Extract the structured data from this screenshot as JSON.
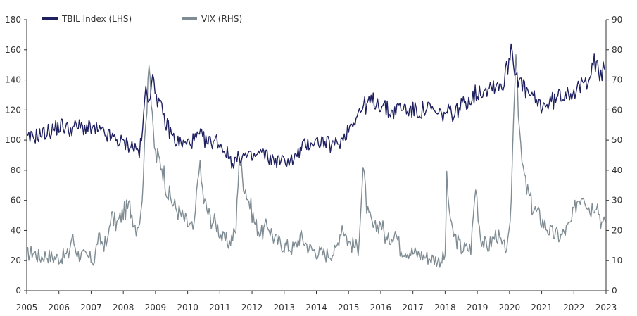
{
  "chart_data": {
    "type": "line",
    "title": "",
    "x_range": [
      2005,
      2023
    ],
    "x_ticks": [
      "2005",
      "2006",
      "2007",
      "2008",
      "2009",
      "2010",
      "2011",
      "2012",
      "2013",
      "2014",
      "2015",
      "2016",
      "2017",
      "2018",
      "2019",
      "2020",
      "2021",
      "2022",
      "2023"
    ],
    "y_left": {
      "range": [
        0,
        180
      ],
      "ticks": [
        "0",
        "20",
        "40",
        "60",
        "80",
        "100",
        "120",
        "140",
        "160",
        "180"
      ]
    },
    "y_right": {
      "range": [
        0,
        90
      ],
      "ticks": [
        "0",
        "10",
        "20",
        "30",
        "40",
        "50",
        "60",
        "70",
        "80",
        "90"
      ]
    },
    "legend_position": "top-left",
    "grid": false,
    "colors": {
      "tbil": "#1f2060",
      "vix": "#7f8c93",
      "axis": "#333333"
    },
    "series": [
      {
        "name": "TBIL Index (LHS)",
        "axis": "left",
        "points": [
          [
            2005.0,
            100
          ],
          [
            2005.3,
            103
          ],
          [
            2005.6,
            105
          ],
          [
            2005.9,
            108
          ],
          [
            2006.1,
            110
          ],
          [
            2006.3,
            107
          ],
          [
            2006.6,
            109
          ],
          [
            2006.9,
            108
          ],
          [
            2007.2,
            106
          ],
          [
            2007.5,
            103
          ],
          [
            2007.8,
            100
          ],
          [
            2008.0,
            98
          ],
          [
            2008.3,
            96
          ],
          [
            2008.5,
            92
          ],
          [
            2008.6,
            105
          ],
          [
            2008.7,
            135
          ],
          [
            2008.8,
            130
          ],
          [
            2008.95,
            140
          ],
          [
            2009.1,
            125
          ],
          [
            2009.3,
            112
          ],
          [
            2009.6,
            100
          ],
          [
            2009.9,
            97
          ],
          [
            2010.2,
            100
          ],
          [
            2010.4,
            103
          ],
          [
            2010.6,
            98
          ],
          [
            2010.9,
            100
          ],
          [
            2011.2,
            92
          ],
          [
            2011.4,
            85
          ],
          [
            2011.7,
            90
          ],
          [
            2012.0,
            88
          ],
          [
            2012.3,
            92
          ],
          [
            2012.6,
            87
          ],
          [
            2012.9,
            86
          ],
          [
            2013.3,
            87
          ],
          [
            2013.6,
            96
          ],
          [
            2013.9,
            99
          ],
          [
            2014.2,
            99
          ],
          [
            2014.5,
            96
          ],
          [
            2014.8,
            100
          ],
          [
            2015.0,
            108
          ],
          [
            2015.2,
            115
          ],
          [
            2015.5,
            123
          ],
          [
            2015.8,
            126
          ],
          [
            2016.0,
            124
          ],
          [
            2016.3,
            118
          ],
          [
            2016.6,
            122
          ],
          [
            2016.9,
            120
          ],
          [
            2017.2,
            119
          ],
          [
            2017.5,
            121
          ],
          [
            2017.8,
            116
          ],
          [
            2018.0,
            118
          ],
          [
            2018.3,
            118
          ],
          [
            2018.6,
            125
          ],
          [
            2018.9,
            130
          ],
          [
            2019.2,
            134
          ],
          [
            2019.5,
            137
          ],
          [
            2019.8,
            137
          ],
          [
            2019.95,
            150
          ],
          [
            2020.05,
            163
          ],
          [
            2020.2,
            145
          ],
          [
            2020.4,
            135
          ],
          [
            2020.7,
            128
          ],
          [
            2020.95,
            123
          ],
          [
            2021.2,
            124
          ],
          [
            2021.5,
            128
          ],
          [
            2021.8,
            133
          ],
          [
            2022.1,
            132
          ],
          [
            2022.4,
            140
          ],
          [
            2022.6,
            153
          ],
          [
            2022.8,
            143
          ],
          [
            2022.95,
            147
          ]
        ]
      },
      {
        "name": "VIX (RHS)",
        "axis": "right",
        "points": [
          [
            2005.0,
            12
          ],
          [
            2005.2,
            13
          ],
          [
            2005.4,
            11
          ],
          [
            2005.6,
            12
          ],
          [
            2005.8,
            11
          ],
          [
            2006.0,
            11
          ],
          [
            2006.3,
            12
          ],
          [
            2006.4,
            18
          ],
          [
            2006.6,
            12
          ],
          [
            2006.9,
            11
          ],
          [
            2007.1,
            10
          ],
          [
            2007.2,
            17
          ],
          [
            2007.5,
            15
          ],
          [
            2007.6,
            25
          ],
          [
            2007.8,
            22
          ],
          [
            2008.0,
            26
          ],
          [
            2008.2,
            28
          ],
          [
            2008.4,
            21
          ],
          [
            2008.55,
            25
          ],
          [
            2008.7,
            55
          ],
          [
            2008.8,
            80
          ],
          [
            2008.9,
            55
          ],
          [
            2009.0,
            45
          ],
          [
            2009.2,
            42
          ],
          [
            2009.4,
            32
          ],
          [
            2009.6,
            28
          ],
          [
            2009.8,
            25
          ],
          [
            2010.0,
            22
          ],
          [
            2010.2,
            20
          ],
          [
            2010.35,
            43
          ],
          [
            2010.5,
            30
          ],
          [
            2010.7,
            24
          ],
          [
            2010.9,
            22
          ],
          [
            2011.1,
            17
          ],
          [
            2011.3,
            16
          ],
          [
            2011.5,
            20
          ],
          [
            2011.6,
            45
          ],
          [
            2011.7,
            38
          ],
          [
            2011.9,
            30
          ],
          [
            2012.1,
            22
          ],
          [
            2012.3,
            19
          ],
          [
            2012.5,
            22
          ],
          [
            2012.7,
            17
          ],
          [
            2013.0,
            15
          ],
          [
            2013.3,
            14
          ],
          [
            2013.5,
            18
          ],
          [
            2013.8,
            14
          ],
          [
            2014.0,
            13
          ],
          [
            2014.3,
            12
          ],
          [
            2014.6,
            13
          ],
          [
            2014.8,
            22
          ],
          [
            2015.0,
            16
          ],
          [
            2015.3,
            14
          ],
          [
            2015.45,
            40
          ],
          [
            2015.6,
            25
          ],
          [
            2015.8,
            20
          ],
          [
            2016.0,
            23
          ],
          [
            2016.2,
            16
          ],
          [
            2016.45,
            20
          ],
          [
            2016.6,
            14
          ],
          [
            2016.9,
            13
          ],
          [
            2017.2,
            12
          ],
          [
            2017.5,
            11
          ],
          [
            2017.8,
            10
          ],
          [
            2018.0,
            11
          ],
          [
            2018.05,
            36
          ],
          [
            2018.2,
            20
          ],
          [
            2018.5,
            14
          ],
          [
            2018.8,
            14
          ],
          [
            2018.95,
            35
          ],
          [
            2019.1,
            18
          ],
          [
            2019.3,
            14
          ],
          [
            2019.6,
            19
          ],
          [
            2019.8,
            14
          ],
          [
            2019.95,
            15
          ],
          [
            2020.02,
            20
          ],
          [
            2020.2,
            82
          ],
          [
            2020.35,
            45
          ],
          [
            2020.5,
            35
          ],
          [
            2020.7,
            28
          ],
          [
            2020.9,
            25
          ],
          [
            2021.1,
            22
          ],
          [
            2021.3,
            19
          ],
          [
            2021.6,
            18
          ],
          [
            2021.9,
            22
          ],
          [
            2022.1,
            30
          ],
          [
            2022.3,
            33
          ],
          [
            2022.5,
            27
          ],
          [
            2022.7,
            30
          ],
          [
            2022.9,
            21
          ],
          [
            2022.98,
            23
          ]
        ]
      }
    ]
  }
}
